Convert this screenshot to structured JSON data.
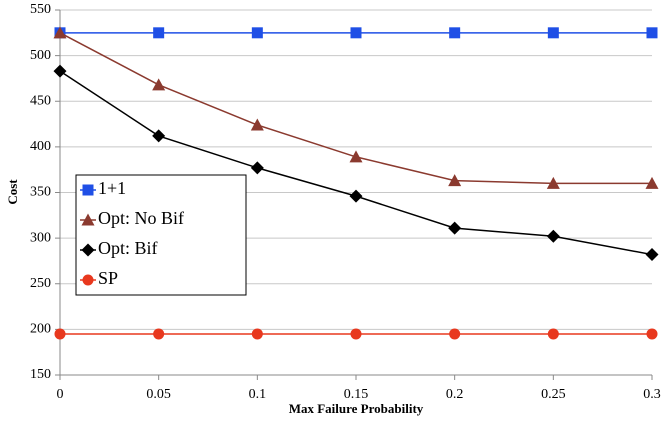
{
  "chart_data": {
    "type": "line",
    "xlabel": "Max Failure Probability",
    "ylabel": "Cost",
    "x": [
      0,
      0.05,
      0.1,
      0.15,
      0.2,
      0.25,
      0.3
    ],
    "series": [
      {
        "name": "1+1",
        "color": "#1f4fe6",
        "marker": "square",
        "values": [
          525,
          525,
          525,
          525,
          525,
          525,
          525
        ]
      },
      {
        "name": "Opt: No Bif",
        "color": "#8b3a2f",
        "marker": "triangle",
        "values": [
          525,
          468,
          424,
          389,
          363,
          360,
          360
        ]
      },
      {
        "name": "Opt: Bif",
        "color": "#000000",
        "marker": "diamond",
        "values": [
          483,
          412,
          377,
          346,
          311,
          302,
          282
        ]
      },
      {
        "name": "SP",
        "color": "#e8381e",
        "marker": "circle",
        "values": [
          195,
          195,
          195,
          195,
          195,
          195,
          195
        ]
      }
    ],
    "xlim": [
      0,
      0.3
    ],
    "xticks": [
      0,
      0.05,
      0.1,
      0.15,
      0.2,
      0.25,
      0.3
    ],
    "ylim": [
      150,
      550
    ],
    "yticks": [
      150,
      200,
      250,
      300,
      350,
      400,
      450,
      500,
      550
    ],
    "grid": true,
    "legend": "left"
  }
}
